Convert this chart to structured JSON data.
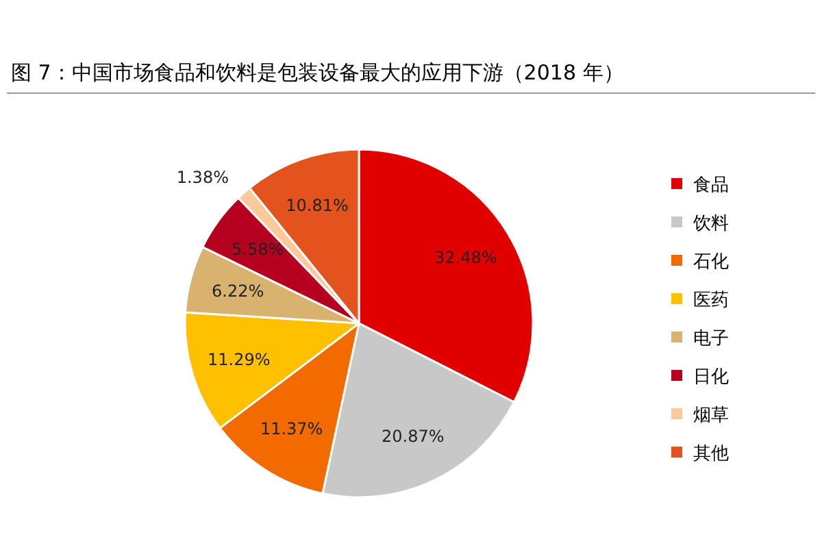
{
  "chart_data": {
    "type": "pie",
    "title": "图 7：中国市场食品和饮料是包装设备最大的应用下游（2018 年）",
    "categories": [
      "食品",
      "饮料",
      "石化",
      "医药",
      "电子",
      "日化",
      "烟草",
      "其他"
    ],
    "values": [
      32.48,
      20.87,
      11.37,
      11.29,
      6.22,
      5.58,
      1.38,
      10.81
    ],
    "value_labels": [
      "32.48%",
      "20.87%",
      "11.37%",
      "11.29%",
      "6.22%",
      "5.58%",
      "1.38%",
      "10.81%"
    ],
    "colors": [
      "#e00000",
      "#c8c8c8",
      "#f26b00",
      "#ffc000",
      "#d9b26f",
      "#b5001f",
      "#fbc99a",
      "#e2531e"
    ],
    "legend": "right"
  }
}
